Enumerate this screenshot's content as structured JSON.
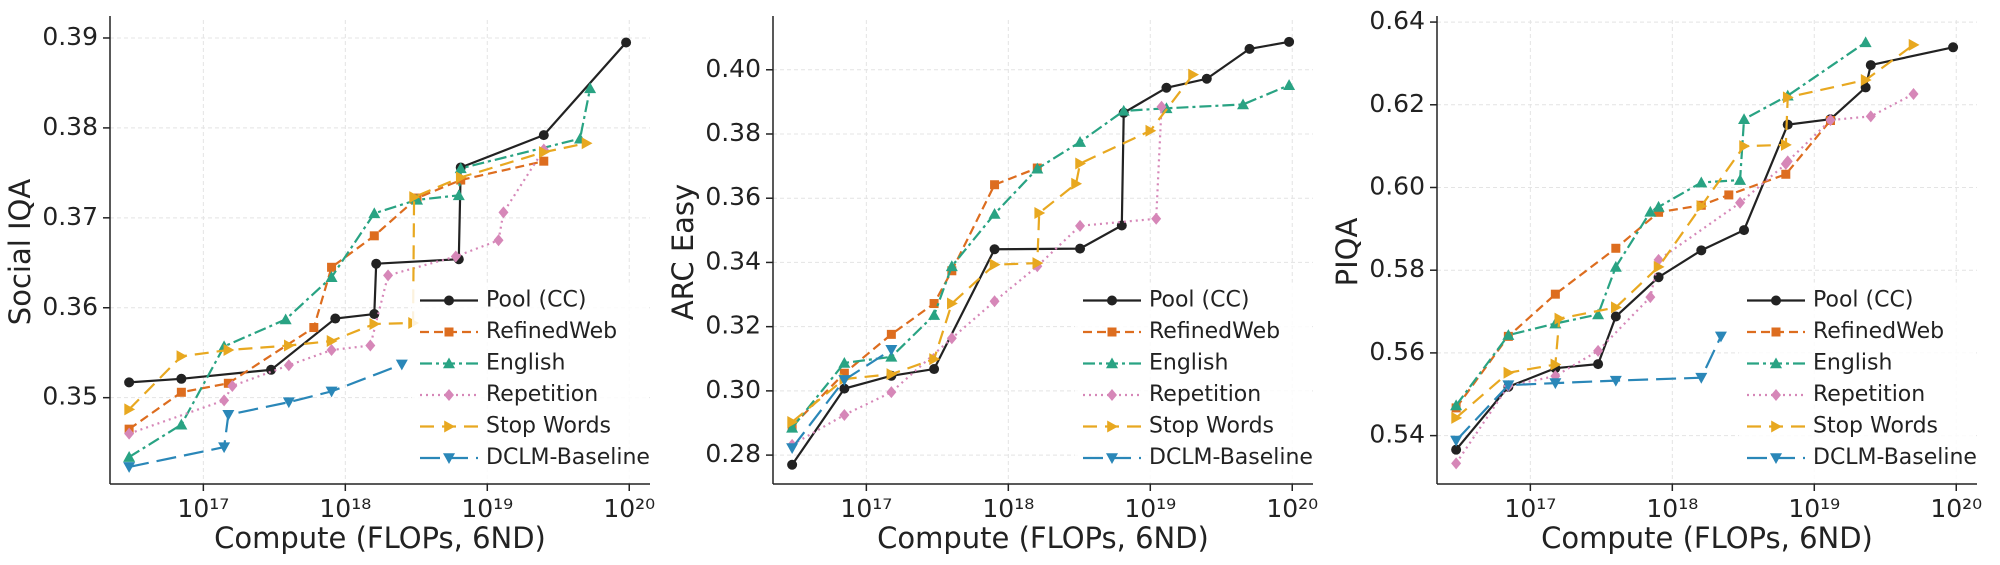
{
  "chart_data": [
    {
      "type": "line",
      "ylabel": "Social IQA",
      "xlabel": "Compute (FLOPs, 6ND)",
      "xscale": "log",
      "grid": true,
      "legend": "lower right",
      "xlim": [
        2.2e+16,
        1.4e+20
      ],
      "xticks": [
        {
          "value": 1e+17,
          "label": "10¹⁷"
        },
        {
          "value": 1e+18,
          "label": "10¹⁸"
        },
        {
          "value": 1e+19,
          "label": "10¹⁹"
        },
        {
          "value": 1e+20,
          "label": "10²⁰"
        }
      ],
      "ylim": [
        0.3404,
        0.392
      ],
      "yticks": [
        0.35,
        0.36,
        0.37,
        0.38,
        0.39
      ],
      "series": [
        {
          "name": "Pool (CC)",
          "color": "#222222",
          "dash": "solid",
          "marker": "circle",
          "x": [
            3e+16,
            7e+16,
            3e+17,
            8.5e+17,
            1.6e+18,
            1.65e+18,
            6.3e+18,
            6.5e+18,
            2.5e+19,
            9.5e+19
          ],
          "values": [
            0.3517,
            0.3521,
            0.3531,
            0.3588,
            0.3593,
            0.3649,
            0.3654,
            0.3756,
            0.3792,
            0.3895
          ]
        },
        {
          "name": "RefinedWeb",
          "color": "#dd6d1f",
          "dash": "dashed",
          "marker": "square",
          "x": [
            3e+16,
            7e+16,
            1.5e+17,
            6e+17,
            8e+17,
            1.6e+18,
            3.2e+18,
            6.5e+18,
            2.5e+19
          ],
          "values": [
            0.3465,
            0.3506,
            0.3516,
            0.3578,
            0.3645,
            0.368,
            0.3722,
            0.3742,
            0.3763
          ]
        },
        {
          "name": "English",
          "color": "#29a383",
          "dash": "dashdot",
          "marker": "triangle-up",
          "x": [
            3e+16,
            7e+16,
            1.4e+17,
            3.8e+17,
            8e+17,
            1.6e+18,
            3.2e+18,
            6.3e+18,
            6.5e+18,
            4.5e+19,
            5.3e+19
          ],
          "values": [
            0.3434,
            0.347,
            0.3557,
            0.3587,
            0.3634,
            0.3705,
            0.372,
            0.3725,
            0.3755,
            0.3788,
            0.3844
          ]
        },
        {
          "name": "Repetition",
          "color": "#d687b8",
          "dash": "dotted",
          "marker": "diamond",
          "x": [
            3e+16,
            1.4e+17,
            1.6e+17,
            4e+17,
            8e+17,
            1.5e+18,
            2e+18,
            6e+18,
            1.2e+19,
            1.3e+19,
            2.5e+19
          ],
          "values": [
            0.346,
            0.3497,
            0.3513,
            0.3536,
            0.3553,
            0.3558,
            0.3636,
            0.3657,
            0.3675,
            0.3706,
            0.3776
          ]
        },
        {
          "name": "Stop Words",
          "color": "#e8a820",
          "dash": "loose",
          "marker": "triangle-right",
          "x": [
            3e+16,
            7e+16,
            1.5e+17,
            4e+17,
            8e+17,
            1.6e+18,
            3e+18,
            3.05e+18,
            6.5e+18,
            2.5e+19,
            5e+19
          ],
          "values": [
            0.3487,
            0.3546,
            0.3553,
            0.3558,
            0.3563,
            0.3582,
            0.3583,
            0.3723,
            0.3745,
            0.3773,
            0.3783
          ]
        },
        {
          "name": "DCLM-Baseline",
          "color": "#2a87b8",
          "dash": "long",
          "marker": "triangle-down",
          "x": [
            3e+16,
            1.4e+17,
            1.5e+17,
            4e+17,
            8e+17,
            2.5e+18
          ],
          "values": [
            0.3423,
            0.3445,
            0.3481,
            0.3495,
            0.3507,
            0.3537
          ]
        }
      ]
    },
    {
      "type": "line",
      "ylabel": "ARC Easy",
      "xlabel": "Compute (FLOPs, 6ND)",
      "xscale": "log",
      "grid": true,
      "legend": "lower right",
      "xlim": [
        2.2e+16,
        1.4e+20
      ],
      "xticks": [
        {
          "value": 1e+17,
          "label": "10¹⁷"
        },
        {
          "value": 1e+18,
          "label": "10¹⁸"
        },
        {
          "value": 1e+19,
          "label": "10¹⁹"
        },
        {
          "value": 1e+20,
          "label": "10²⁰"
        }
      ],
      "ylim": [
        0.271,
        0.4155
      ],
      "yticks": [
        0.28,
        {
          "value": 0.3,
          "label": "0.30"
        },
        0.32,
        0.34,
        0.36,
        0.38,
        {
          "value": 0.4,
          "label": "0.40"
        }
      ],
      "series": [
        {
          "name": "Pool (CC)",
          "color": "#222222",
          "dash": "solid",
          "marker": "circle",
          "x": [
            3e+16,
            7e+16,
            1.5e+17,
            3e+17,
            8e+17,
            3.2e+18,
            6.3e+18,
            6.5e+18,
            1.3e+19,
            2.5e+19,
            5e+19,
            9.5e+19
          ],
          "values": [
            0.277,
            0.3007,
            0.3047,
            0.3068,
            0.3441,
            0.3443,
            0.3515,
            0.3866,
            0.3944,
            0.3972,
            0.4065,
            0.4087
          ]
        },
        {
          "name": "RefinedWeb",
          "color": "#dd6d1f",
          "dash": "dashed",
          "marker": "square",
          "x": [
            3e+16,
            7e+16,
            1.5e+17,
            3e+17,
            4e+17,
            8e+17,
            1.6e+18
          ],
          "values": [
            0.289,
            0.3055,
            0.3176,
            0.3272,
            0.3374,
            0.3642,
            0.3694
          ]
        },
        {
          "name": "English",
          "color": "#29a383",
          "dash": "dashdot",
          "marker": "triangle-up",
          "x": [
            3e+16,
            7e+16,
            1.5e+17,
            3e+17,
            4e+17,
            8e+17,
            1.6e+18,
            3.2e+18,
            6.5e+18,
            1.3e+19,
            4.5e+19,
            9.5e+19
          ],
          "values": [
            0.2885,
            0.3087,
            0.3106,
            0.3236,
            0.3388,
            0.3551,
            0.3692,
            0.3775,
            0.3872,
            0.388,
            0.3892,
            0.3952
          ]
        },
        {
          "name": "Repetition",
          "color": "#d687b8",
          "dash": "dotted",
          "marker": "diamond",
          "x": [
            3e+16,
            7e+16,
            1.5e+17,
            4e+17,
            8e+17,
            1.6e+18,
            3.2e+18,
            1.1e+19,
            1.2e+19
          ],
          "values": [
            0.2832,
            0.2925,
            0.2996,
            0.3164,
            0.3279,
            0.3388,
            0.3514,
            0.3536,
            0.3885
          ]
        },
        {
          "name": "Stop Words",
          "color": "#e8a820",
          "dash": "loose",
          "marker": "triangle-right",
          "x": [
            3e+16,
            7e+16,
            1.5e+17,
            3e+17,
            4e+17,
            8e+17,
            1.6e+18,
            1.65e+18,
            3e+18,
            3.2e+18,
            1e+19,
            2e+19
          ],
          "values": [
            0.2903,
            0.3037,
            0.3052,
            0.3099,
            0.3272,
            0.3393,
            0.3398,
            0.3554,
            0.3645,
            0.3708,
            0.381,
            0.3985
          ]
        },
        {
          "name": "DCLM-Baseline",
          "color": "#2a87b8",
          "dash": "long",
          "marker": "triangle-down",
          "x": [
            3e+16,
            7e+16,
            1.5e+17
          ],
          "values": [
            0.2822,
            0.3034,
            0.3128
          ]
        }
      ]
    },
    {
      "type": "line",
      "ylabel": "PIQA",
      "xlabel": "Compute (FLOPs, 6ND)",
      "xscale": "log",
      "grid": true,
      "legend": "lower right",
      "xlim": [
        2.2e+16,
        1.4e+20
      ],
      "xticks": [
        {
          "value": 1e+17,
          "label": "10¹⁷"
        },
        {
          "value": 1e+18,
          "label": "10¹⁸"
        },
        {
          "value": 1e+19,
          "label": "10¹⁹"
        },
        {
          "value": 1e+20,
          "label": "10²⁰"
        }
      ],
      "ylim": [
        0.5283,
        0.6405
      ],
      "yticks": [
        0.54,
        0.56,
        0.58,
        {
          "value": 0.6,
          "label": "0.60"
        },
        0.62,
        0.64
      ],
      "series": [
        {
          "name": "Pool (CC)",
          "color": "#222222",
          "dash": "solid",
          "marker": "circle",
          "x": [
            3e+16,
            7e+16,
            1.5e+17,
            3e+17,
            4e+17,
            8e+17,
            1.6e+18,
            3.2e+18,
            6.5e+18,
            1.3e+19,
            2.3e+19,
            2.5e+19,
            9.5e+19
          ],
          "values": [
            0.5366,
            0.5518,
            0.5563,
            0.5573,
            0.5688,
            0.5783,
            0.5848,
            0.5897,
            0.6152,
            0.6165,
            0.6242,
            0.6296,
            0.6339
          ]
        },
        {
          "name": "RefinedWeb",
          "color": "#dd6d1f",
          "dash": "dashed",
          "marker": "square",
          "x": [
            3e+16,
            7e+16,
            1.5e+17,
            4e+17,
            8e+17,
            1.6e+18,
            2.5e+18,
            6.3e+18,
            1.3e+19
          ],
          "values": [
            0.5467,
            0.564,
            0.5742,
            0.5853,
            0.594,
            0.5957,
            0.5982,
            0.6032,
            0.6162
          ]
        },
        {
          "name": "English",
          "color": "#29a383",
          "dash": "dashdot",
          "marker": "triangle-up",
          "x": [
            3e+16,
            7e+16,
            1.5e+17,
            3e+17,
            4e+17,
            7e+17,
            8e+17,
            1.6e+18,
            3e+18,
            3.2e+18,
            6.5e+18,
            2.3e+19
          ],
          "values": [
            0.5473,
            0.5643,
            0.5671,
            0.5693,
            0.5808,
            0.5941,
            0.5953,
            0.6012,
            0.6018,
            0.6165,
            0.6222,
            0.6351
          ]
        },
        {
          "name": "Repetition",
          "color": "#d687b8",
          "dash": "dotted",
          "marker": "diamond",
          "x": [
            3e+16,
            7e+16,
            1.5e+17,
            3e+17,
            7e+17,
            8e+17,
            3e+18,
            6.3e+18,
            6.5e+18,
            1.3e+19,
            2.5e+19,
            5e+19
          ],
          "values": [
            0.5333,
            0.552,
            0.5544,
            0.5605,
            0.5735,
            0.5825,
            0.5963,
            0.6057,
            0.6063,
            0.6163,
            0.6172,
            0.6226
          ]
        },
        {
          "name": "Stop Words",
          "color": "#e8a820",
          "dash": "loose",
          "marker": "triangle-right",
          "x": [
            3e+16,
            7e+16,
            1.5e+17,
            1.6e+17,
            4e+17,
            8e+17,
            1.6e+18,
            3.2e+18,
            6.3e+18,
            6.5e+18,
            2.3e+19,
            5e+19
          ],
          "values": [
            0.5443,
            0.5552,
            0.5572,
            0.5683,
            0.571,
            0.5808,
            0.5955,
            0.61,
            0.6103,
            0.6218,
            0.626,
            0.6345
          ]
        },
        {
          "name": "DCLM-Baseline",
          "color": "#2a87b8",
          "dash": "long",
          "marker": "triangle-down",
          "x": [
            3e+16,
            7e+16,
            1.5e+17,
            4e+17,
            1.6e+18,
            2.2e+18
          ],
          "values": [
            0.5388,
            0.5522,
            0.5527,
            0.5533,
            0.554,
            0.564
          ]
        }
      ]
    }
  ]
}
